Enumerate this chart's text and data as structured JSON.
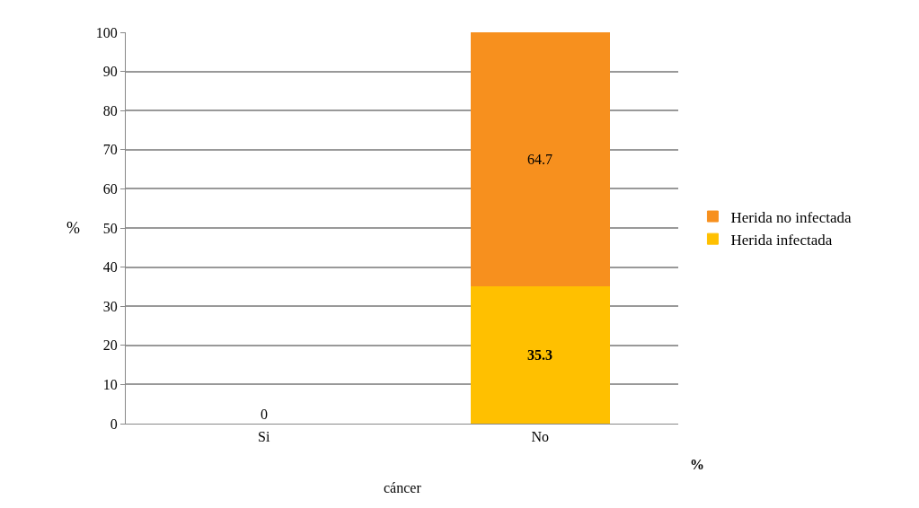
{
  "chart_data": {
    "type": "bar",
    "stacked": true,
    "categories": [
      "Si",
      "No"
    ],
    "series": [
      {
        "name": "Herida infectada",
        "color": "#ffc000",
        "values": [
          0,
          35.3
        ],
        "value_labels": [
          "0",
          "35.3"
        ]
      },
      {
        "name": "Herida no infectada",
        "color": "#f7901e",
        "values": [
          0,
          64.7
        ],
        "value_labels": [
          null,
          "64.7"
        ]
      }
    ],
    "xlabel": "cáncer",
    "ylabel": "%",
    "annotations": [
      "%"
    ],
    "ylim": [
      0,
      100
    ],
    "yticks": [
      0,
      10,
      20,
      30,
      40,
      50,
      60,
      70,
      80,
      90,
      100
    ],
    "grid": "y",
    "legend": "right"
  }
}
